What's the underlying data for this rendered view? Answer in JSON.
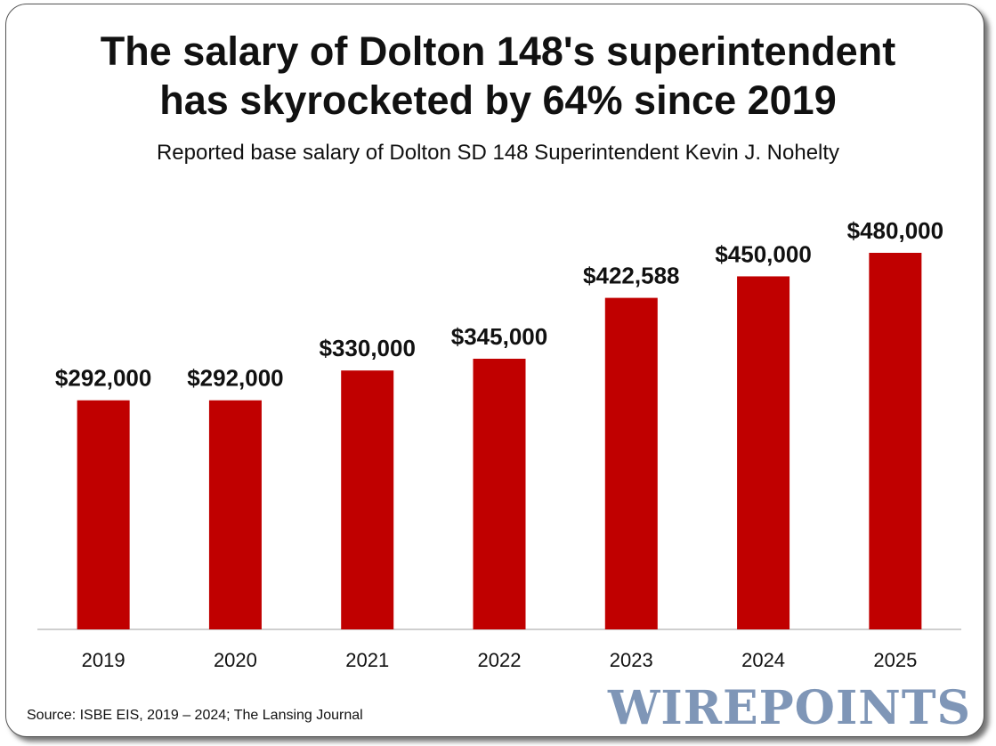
{
  "chart_data": {
    "type": "bar",
    "title_lines": [
      "The salary of Dolton 148's superintendent",
      "has skyrocketed by 64% since 2019"
    ],
    "subtitle": "Reported base salary of Dolton SD 148 Superintendent Kevin J. Nohelty",
    "categories": [
      "2019",
      "2020",
      "2021",
      "2022",
      "2023",
      "2024",
      "2025"
    ],
    "values": [
      292000,
      292000,
      330000,
      345000,
      422588,
      450000,
      480000
    ],
    "value_labels": [
      "$292,000",
      "$292,000",
      "$330,000",
      "$345,000",
      "$422,588",
      "$450,000",
      "$480,000"
    ],
    "ylim": [
      0,
      480000
    ],
    "bar_color": "#c00000",
    "grid": false,
    "legend": "none"
  },
  "footer": {
    "source": "Source: ISBE EIS, 2019 – 2024; The Lansing Journal",
    "logo_text": "WIREPOINTS",
    "logo_color": "#7f96b7"
  }
}
